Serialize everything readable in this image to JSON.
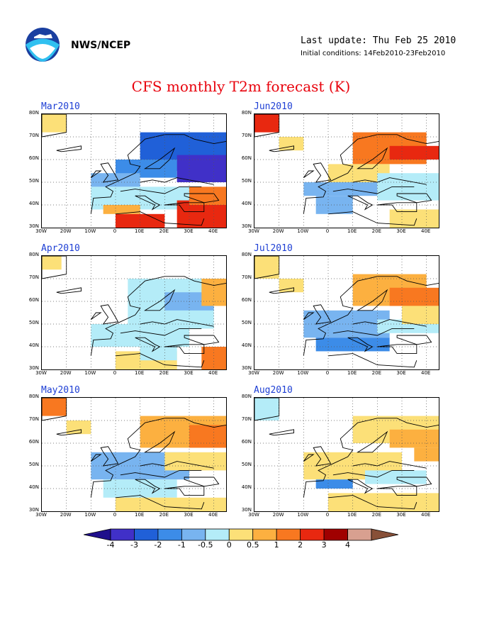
{
  "header": {
    "org": "NWS/NCEP",
    "last_update": "Last update: Thu Feb 25 2010",
    "initial_conditions": "Initial conditions: 14Feb2010-23Feb2010",
    "title": "CFS monthly T2m forecast (K)"
  },
  "logo": {
    "name": "noaa-logo"
  },
  "panels": [
    {
      "title": "Mar2010"
    },
    {
      "title": "Jun2010"
    },
    {
      "title": "Apr2010"
    },
    {
      "title": "Jul2010"
    },
    {
      "title": "May2010"
    },
    {
      "title": "Aug2010"
    }
  ],
  "axes": {
    "lat_ticks": [
      "80N",
      "70N",
      "60N",
      "50N",
      "40N",
      "30N"
    ],
    "lon_ticks": [
      "30W",
      "20W",
      "10W",
      "0",
      "10E",
      "20E",
      "30E",
      "40E"
    ]
  },
  "colorbar": {
    "labels": [
      "-4",
      "-3",
      "-2",
      "-1",
      "-0.5",
      "0",
      "0.5",
      "1",
      "2",
      "3",
      "4"
    ],
    "colors": [
      "#1f0f8c",
      "#4030c8",
      "#2060d8",
      "#3c8ce8",
      "#78b4f0",
      "#b4ecf8",
      "#fce078",
      "#fcb040",
      "#f87820",
      "#e82810",
      "#a00000",
      "#d8a090",
      "#885038"
    ]
  }
}
